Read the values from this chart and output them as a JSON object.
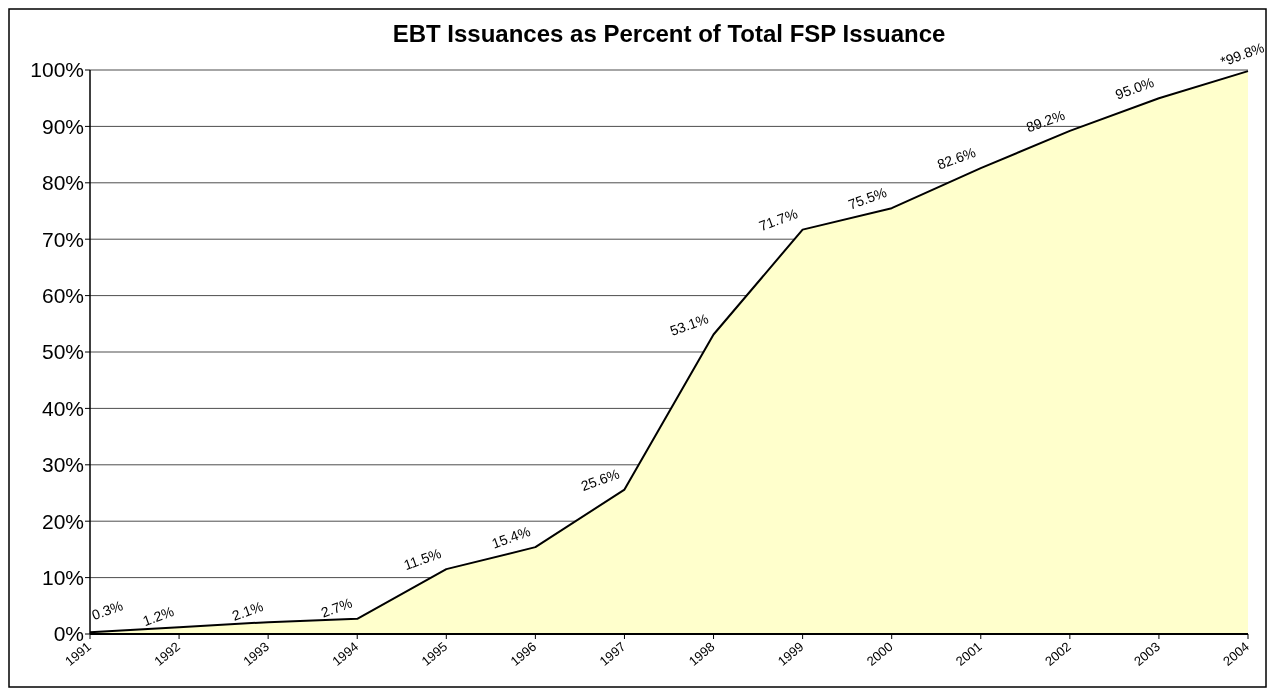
{
  "chart_data": {
    "type": "area",
    "title": "EBT Issuances as Percent of Total FSP Issuance",
    "categories": [
      "1991",
      "1992",
      "1993",
      "1994",
      "1995",
      "1996",
      "1997",
      "1998",
      "1999",
      "2000",
      "2001",
      "2002",
      "2003",
      "2004"
    ],
    "series": [
      {
        "color": "#ffffcc",
        "values": [
          0.3,
          1.2,
          2.1,
          2.7,
          11.5,
          15.4,
          25.6,
          53.1,
          71.7,
          75.5,
          82.6,
          89.2,
          95.0,
          99.8
        ],
        "value_labels": [
          "0.3%",
          "1.2%",
          "2.1%",
          "2.7%",
          "11.5%",
          "15.4%",
          "25.6%",
          "53.1%",
          "71.7%",
          "75.5%",
          "82.6%",
          "89.2%",
          "95.0%",
          "*99.8%"
        ]
      }
    ],
    "ylim": [
      0,
      100
    ],
    "yticks": [
      {
        "value": 0,
        "label": "0%"
      },
      {
        "value": 10,
        "label": "10%"
      },
      {
        "value": 20,
        "label": "20%"
      },
      {
        "value": 30,
        "label": "30%"
      },
      {
        "value": 40,
        "label": "40%"
      },
      {
        "value": 50,
        "label": "50%"
      },
      {
        "value": 60,
        "label": "60%"
      },
      {
        "value": 70,
        "label": "70%"
      },
      {
        "value": 80,
        "label": "80%"
      },
      {
        "value": 90,
        "label": "90%"
      },
      {
        "value": 100,
        "label": "100%"
      }
    ],
    "grid": "y"
  }
}
